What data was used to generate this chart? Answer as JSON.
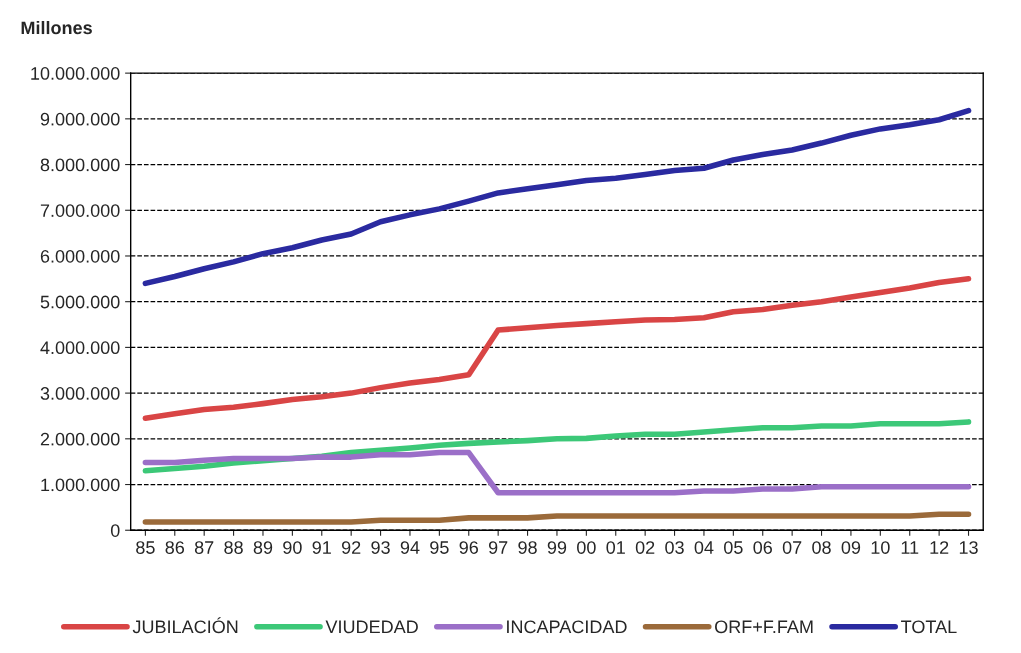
{
  "chart_data": {
    "type": "line",
    "ylabel": "Millones",
    "categories": [
      "85",
      "86",
      "87",
      "88",
      "89",
      "90",
      "91",
      "92",
      "93",
      "94",
      "95",
      "96",
      "97",
      "98",
      "99",
      "00",
      "01",
      "02",
      "03",
      "04",
      "05",
      "06",
      "07",
      "08",
      "09",
      "10",
      "11",
      "12",
      "13"
    ],
    "series": [
      {
        "name": "JUBILACIÓN",
        "color": "#d94545",
        "values": [
          2450000,
          2550000,
          2640000,
          2690000,
          2770000,
          2860000,
          2920000,
          3000000,
          3120000,
          3220000,
          3300000,
          3400000,
          4380000,
          4430000,
          4480000,
          4520000,
          4560000,
          4600000,
          4610000,
          4650000,
          4780000,
          4830000,
          4920000,
          5000000,
          5100000,
          5200000,
          5300000,
          5420000,
          5500000
        ]
      },
      {
        "name": "VIUDEDAD",
        "color": "#3cc878",
        "values": [
          1300000,
          1350000,
          1400000,
          1470000,
          1520000,
          1570000,
          1620000,
          1700000,
          1750000,
          1800000,
          1860000,
          1900000,
          1930000,
          1960000,
          2000000,
          2010000,
          2060000,
          2100000,
          2100000,
          2150000,
          2200000,
          2240000,
          2240000,
          2280000,
          2280000,
          2330000,
          2330000,
          2330000,
          2370000
        ]
      },
      {
        "name": "INCAPACIDAD",
        "color": "#9b6fc8",
        "values": [
          1480000,
          1480000,
          1530000,
          1570000,
          1570000,
          1570000,
          1600000,
          1600000,
          1650000,
          1650000,
          1700000,
          1700000,
          820000,
          820000,
          820000,
          820000,
          820000,
          820000,
          820000,
          860000,
          860000,
          900000,
          900000,
          950000,
          950000,
          950000,
          950000,
          950000,
          950000
        ]
      },
      {
        "name": "ORF+F.FAM",
        "color": "#9b6a3a",
        "values": [
          180000,
          180000,
          180000,
          180000,
          180000,
          180000,
          180000,
          180000,
          220000,
          220000,
          220000,
          270000,
          270000,
          270000,
          310000,
          310000,
          310000,
          310000,
          310000,
          310000,
          310000,
          310000,
          310000,
          310000,
          310000,
          310000,
          310000,
          350000,
          350000
        ]
      },
      {
        "name": "TOTAL",
        "color": "#2a2aa0",
        "values": [
          5400000,
          5550000,
          5720000,
          5870000,
          6050000,
          6180000,
          6350000,
          6480000,
          6750000,
          6900000,
          7030000,
          7200000,
          7380000,
          7470000,
          7560000,
          7650000,
          7700000,
          7780000,
          7870000,
          7920000,
          8100000,
          8220000,
          8320000,
          8470000,
          8640000,
          8780000,
          8870000,
          8980000,
          9180000
        ]
      }
    ],
    "ylim": [
      0,
      10000000
    ],
    "yticks": [
      0,
      {
        "value": 1000000,
        "label": "1.000.000"
      },
      {
        "value": 2000000,
        "label": "2.000.000"
      },
      {
        "value": 3000000,
        "label": "3.000.000"
      },
      {
        "value": 4000000,
        "label": "4.000.000"
      },
      {
        "value": 5000000,
        "label": "5.000.000"
      },
      {
        "value": 6000000,
        "label": "6.000.000"
      },
      {
        "value": 7000000,
        "label": "7.000.000"
      },
      {
        "value": 8000000,
        "label": "8.000.000"
      },
      {
        "value": 9000000,
        "label": "9.000.000"
      },
      {
        "value": 10000000,
        "label": "10.000.000"
      }
    ],
    "grid": "y",
    "legend": "bottom",
    "line_style": "solid",
    "marker": "none"
  }
}
